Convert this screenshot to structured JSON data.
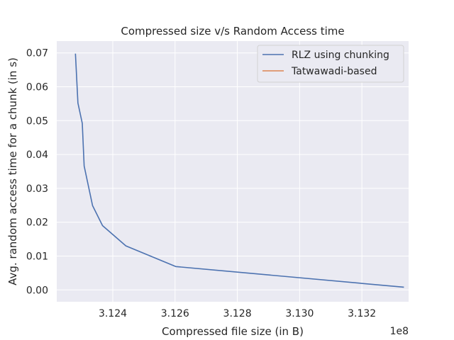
{
  "chart_data": {
    "type": "line",
    "title": "Compressed size v/s Random Access time",
    "xlabel": "Compressed file size (in B)",
    "ylabel": "Avg. random access time for a chunk (in s)",
    "x_offset_label": "1e8",
    "xlim": [
      3.1222,
      3.1335
    ],
    "ylim": [
      -0.0035,
      0.0735
    ],
    "x_ticks": [
      3.124,
      3.126,
      3.128,
      3.13,
      3.132
    ],
    "x_tick_labels": [
      "3.124",
      "3.126",
      "3.128",
      "3.130",
      "3.132"
    ],
    "y_ticks": [
      0.0,
      0.01,
      0.02,
      0.03,
      0.04,
      0.05,
      0.06,
      0.07
    ],
    "y_tick_labels": [
      "0.00",
      "0.01",
      "0.02",
      "0.03",
      "0.04",
      "0.05",
      "0.06",
      "0.07"
    ],
    "grid": true,
    "legend_position": "top-right",
    "series": [
      {
        "name": "RLZ using chunking",
        "color": "#4c72b0",
        "x": [
          3.1228,
          3.12288,
          3.12302,
          3.12308,
          3.12335,
          3.12367,
          3.12442,
          3.12602,
          3.13335
        ],
        "y": [
          0.0698,
          0.0552,
          0.0492,
          0.0366,
          0.0249,
          0.019,
          0.013,
          0.0069,
          0.0008
        ]
      },
      {
        "name": "Tatwawadi-based",
        "color": "#dd8452",
        "x": [],
        "y": []
      }
    ]
  }
}
